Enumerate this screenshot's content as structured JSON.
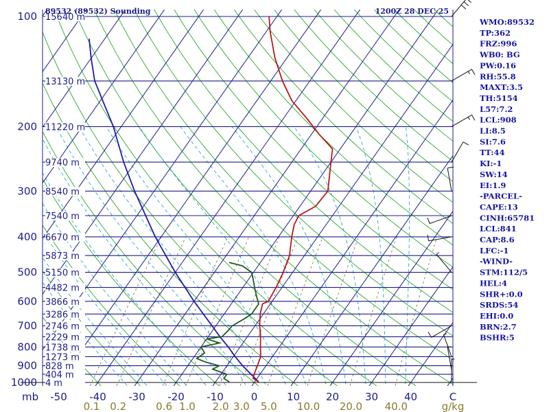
{
  "header": {
    "station": "89532 (89532) Sounding",
    "time": "1200Z 28 DEC 25"
  },
  "indices": [
    "WMO:89532",
    "TP:362",
    "FRZ:996",
    "WB0: BG",
    "PW:0.16",
    "RH:55.8",
    "MAXT:3.5",
    "TH:5154",
    "L57:7.2",
    "LCL:908",
    "LI:8.5",
    "SI:7.6",
    "TT:44",
    "KI:-1",
    "SW:14",
    "EI:1.9",
    "-PARCEL-",
    "CAPE:13",
    "CINH:65781",
    "LCL:841",
    "CAP:8.6",
    "LFC:-1",
    "-WIND-",
    "STM:112/5",
    "HEL:4",
    "SHR+:0.0",
    "SRDS:54",
    "EHI:0.0",
    "BRN:2.7",
    "BSHR:5"
  ],
  "colors": {
    "temperature": "#b81818",
    "dewpoint": "#1f5a1f",
    "parcel": "#1c1ca8",
    "isobar": "#1c1c8c",
    "isotherm": "#1c1c8c",
    "dry_adiabat": "#2aa82a",
    "moist_adiabat": "#2aa8c8",
    "mixing_ratio": "#7a7a4a",
    "label": "#1c1c8c",
    "mixing_label": "#8a7a2a"
  },
  "chart_data": {
    "type": "skew-t",
    "ylabel": "mb",
    "xlabel_units": "C",
    "mixing_units": "g/kg",
    "pressure_levels": [
      100,
      200,
      300,
      400,
      500,
      600,
      700,
      800,
      900,
      1000
    ],
    "temperature_ticks": [
      -50,
      -40,
      -30,
      -20,
      -10,
      0,
      10,
      20,
      30,
      40
    ],
    "mixing_ratio_labels": [
      "0.1",
      "0.2",
      "0.6",
      "1.0",
      "2.0",
      "3.0",
      "5.0",
      "10.0",
      "20.0",
      "40.0"
    ],
    "height_labels": [
      {
        "p": 100,
        "label": "15640 m"
      },
      {
        "p": 150,
        "label": "13130 m"
      },
      {
        "p": 200,
        "label": "11220 m"
      },
      {
        "p": 250,
        "label": "9740 m"
      },
      {
        "p": 300,
        "label": "8540 m"
      },
      {
        "p": 350,
        "label": "7540 m"
      },
      {
        "p": 400,
        "label": "6670 m"
      },
      {
        "p": 450,
        "label": "5873 m"
      },
      {
        "p": 500,
        "label": "5150 m"
      },
      {
        "p": 550,
        "label": "4482 m"
      },
      {
        "p": 600,
        "label": "3866 m"
      },
      {
        "p": 650,
        "label": "3286 m"
      },
      {
        "p": 700,
        "label": "2746 m"
      },
      {
        "p": 750,
        "label": "2229 m"
      },
      {
        "p": 800,
        "label": "1738 m"
      },
      {
        "p": 850,
        "label": "1273 m"
      },
      {
        "p": 900,
        "label": "828 m"
      },
      {
        "p": 950,
        "label": "404 m"
      },
      {
        "p": 1000,
        "label": "4 m"
      }
    ],
    "temperature_profile": [
      [
        996,
        1.0
      ],
      [
        975,
        -1.0
      ],
      [
        950,
        -1.5
      ],
      [
        900,
        -2.2
      ],
      [
        850,
        -3.0
      ],
      [
        800,
        -4.8
      ],
      [
        750,
        -6.6
      ],
      [
        700,
        -8.8
      ],
      [
        650,
        -10.8
      ],
      [
        610,
        -12.0
      ],
      [
        600,
        -11.0
      ],
      [
        550,
        -11.5
      ],
      [
        500,
        -12.4
      ],
      [
        450,
        -13.8
      ],
      [
        400,
        -16.6
      ],
      [
        370,
        -18.2
      ],
      [
        350,
        -18.6
      ],
      [
        330,
        -16.0
      ],
      [
        300,
        -15.6
      ],
      [
        250,
        -20.0
      ],
      [
        230,
        -22.0
      ],
      [
        210,
        -28.0
      ],
      [
        190,
        -34.0
      ],
      [
        170,
        -41.0
      ],
      [
        150,
        -47.0
      ],
      [
        130,
        -53.0
      ],
      [
        110,
        -59.0
      ],
      [
        100,
        -62.0
      ]
    ],
    "dewpoint_profile": [
      [
        996,
        -6.5
      ],
      [
        975,
        -8.5
      ],
      [
        950,
        -8.5
      ],
      [
        920,
        -13.0
      ],
      [
        900,
        -12.0
      ],
      [
        880,
        -16.0
      ],
      [
        860,
        -19.0
      ],
      [
        830,
        -18.0
      ],
      [
        800,
        -20.0
      ],
      [
        780,
        -16.0
      ],
      [
        760,
        -20.0
      ],
      [
        750,
        -16.5
      ],
      [
        720,
        -16.0
      ],
      [
        700,
        -15.8
      ],
      [
        670,
        -14.0
      ],
      [
        650,
        -13.0
      ],
      [
        610,
        -13.0
      ],
      [
        580,
        -15.0
      ],
      [
        550,
        -17.0
      ],
      [
        520,
        -19.0
      ],
      [
        500,
        -20.5
      ],
      [
        480,
        -24.0
      ],
      [
        470,
        -28.0
      ]
    ],
    "parcel_profile": [
      [
        996,
        1.0
      ],
      [
        900,
        -6.0
      ],
      [
        850,
        -9.5
      ],
      [
        800,
        -13.0
      ],
      [
        750,
        -17.0
      ],
      [
        700,
        -21.0
      ],
      [
        600,
        -30.0
      ],
      [
        500,
        -40.0
      ],
      [
        400,
        -51.5
      ],
      [
        300,
        -65.0
      ],
      [
        250,
        -73.0
      ],
      [
        200,
        -82.0
      ],
      [
        150,
        -95.0
      ],
      [
        130,
        -100.0
      ],
      [
        115,
        -104.0
      ]
    ],
    "wind_barbs": [
      {
        "p": 1000,
        "dir": 0,
        "speed": 5
      },
      {
        "p": 925,
        "dir": 350,
        "speed": 5
      },
      {
        "p": 850,
        "dir": 340,
        "speed": 5
      },
      {
        "p": 700,
        "dir": 240,
        "speed": 10
      },
      {
        "p": 500,
        "dir": 320,
        "speed": 5
      },
      {
        "p": 400,
        "dir": 260,
        "speed": 10
      },
      {
        "p": 350,
        "dir": 250,
        "speed": 10
      },
      {
        "p": 300,
        "dir": 350,
        "speed": 10
      },
      {
        "p": 250,
        "dir": 30,
        "speed": 10
      },
      {
        "p": 200,
        "dir": 60,
        "speed": 15
      },
      {
        "p": 150,
        "dir": 60,
        "speed": 15
      },
      {
        "p": 100,
        "dir": 40,
        "speed": 30
      }
    ]
  }
}
